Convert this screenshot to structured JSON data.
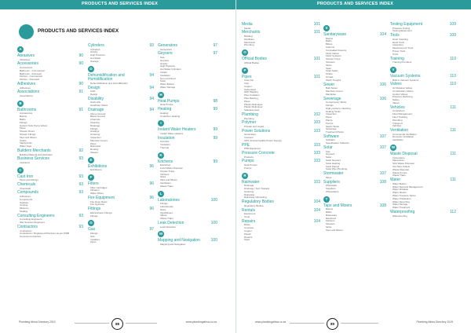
{
  "header": {
    "left_title": "PRODUCTS AND SERVICES INDEX",
    "right_title": "PRODUCTS AND SERVICES INDEX",
    "big_title": "PRODUCTS AND SERVICES INDEX"
  },
  "left_page": {
    "columns": [
      [
        {
          "letter": "A"
        },
        {
          "h": "Abrasives",
          "p": "90",
          "subs": [
            "Abrasives"
          ]
        },
        {
          "h": "Accessories",
          "p": "90",
          "subs": [
            "Accessories",
            "Bathroom - Commercial",
            "Bathroom - Domestic",
            "Kitchen - Commercial",
            "Kitchen - Domestic"
          ]
        },
        {
          "h": "Adhesives",
          "p": "90",
          "subs": [
            "Adhesives"
          ]
        },
        {
          "h": "Associations",
          "p": "91",
          "subs": [
            "Associations"
          ]
        },
        {
          "letter": "B"
        },
        {
          "h": "Bathrooms",
          "p": "91",
          "subs": [
            "Accessories",
            "Basins",
            "Baths",
            "Fittings",
            "Geberit Tank Pump Valves",
            "Pipes",
            "Shower Doors",
            "Shower Fittings",
            "Taps and Mixers",
            "Toilets",
            "Vanity/Units",
            "Water Taps"
          ]
        },
        {
          "h": "Builders Merchants",
          "p": "92",
          "subs": [
            "Building Material and Hardware"
          ]
        },
        {
          "h": "Business Services",
          "p": "93",
          "subs": [
            "Insurance"
          ]
        },
        {
          "letter": "C"
        },
        {
          "h": "Cast Iron",
          "p": "93",
          "subs": [
            "Pipes and Fittings"
          ]
        },
        {
          "h": "Chemicals",
          "p": "93",
          "subs": [
            "Chemicals"
          ]
        },
        {
          "h": "Compounds",
          "p": "93",
          "subs": [
            "Adhesives",
            "Compounds",
            "Gaskets",
            "Jointing",
            "Mixtures",
            "Sealing"
          ]
        },
        {
          "h": "Consulting Engineers",
          "p": "93",
          "subs": [
            "Consulting Engineers",
            "Wet Services Engineers"
          ]
        },
        {
          "h": "Contractors",
          "p": "93",
          "subs": [
            "Contractors",
            "Contractors / Registered Plumbers as per PIRB",
            "General Contractors"
          ]
        }
      ],
      [
        {
          "h": "Cylinders",
          "p": "93",
          "subs": [
            "Cylinders",
            "Gravity",
            "High Pressure",
            "Hot Water",
            "Storage"
          ]
        },
        {
          "letter": "D"
        },
        {
          "h": "Dehumidification and Humidification",
          "p": "94",
          "subs": [
            "Dehumidification and Humidification"
          ]
        },
        {
          "h": "Design",
          "p": "94",
          "subs": [
            "CAD",
            "Design"
          ]
        },
        {
          "h": "Disability",
          "p": "94",
          "subs": [
            "Grab rails",
            "Handicap Toilets"
          ]
        },
        {
          "h": "Drainage",
          "p": "94",
          "subs": [
            "Above Ground",
            "Below Ground",
            "Channels",
            "Cleaning",
            "Drainage",
            "Fittings",
            "Gratings",
            "Guttering",
            "Inspection",
            "Manhole Covers",
            "Pipes",
            "Rainwater",
            "Roofing",
            "Sewers"
          ]
        },
        {
          "letter": "E"
        },
        {
          "h": "Exhibitions",
          "p": "96",
          "subs": [
            "Exhibitions"
          ]
        },
        {
          "letter": "F"
        },
        {
          "h": "Filters",
          "p": "96",
          "subs": [
            "Filter Cartridges",
            "Filtration",
            "Water Filters"
          ]
        },
        {
          "h": "Fire Equipment",
          "p": "96",
          "subs": [
            "Fire Hose Reels",
            "Fire Hydrants"
          ]
        },
        {
          "h": "Fittings",
          "p": "96",
          "subs": [
            "Electrofusion Fittings",
            "Fittings"
          ]
        },
        {
          "letter": "G"
        },
        {
          "h": "Gas",
          "p": "97",
          "subs": [
            "Fittings",
            "Gas",
            "Installers",
            "Pipes"
          ]
        }
      ],
      [
        {
          "h": "Generators",
          "p": "97",
          "subs": [
            "Generators"
          ]
        },
        {
          "h": "Geysers",
          "p": "97",
          "subs": [
            "Gas",
            "Geysers",
            "Gravity",
            "High Pressure",
            "Hot Water Cylinders",
            "Instant",
            "Insulation",
            "Non-combined",
            "Solar",
            "Water Boilers",
            "Water Storage"
          ]
        },
        {
          "letter": "H"
        },
        {
          "h": "Heat Pumps",
          "p": "98",
          "subs": [
            "Heat Pumps"
          ]
        },
        {
          "h": "Heating",
          "p": "99",
          "subs": [
            "Heating",
            "Underfloor Heating"
          ]
        },
        {
          "letter": "I"
        },
        {
          "h": "Instant Water Heaters",
          "p": "99",
          "subs": [
            "Instant Water Heaters"
          ]
        },
        {
          "h": "Insulation",
          "p": "99",
          "subs": [
            "Acoustic",
            "Insulation",
            "Thermal"
          ]
        },
        {
          "letter": "K"
        },
        {
          "h": "Kitchens",
          "p": "99",
          "subs": [
            "Extraction",
            "Food Waste Disposal",
            "Grease Traps",
            "Kitchens",
            "Sinks",
            "Taps and Mixers",
            "Ventilation",
            "Waste Traps"
          ]
        },
        {
          "letter": "L"
        },
        {
          "h": "Laboratories",
          "p": "100",
          "subs": [
            "Fittings",
            "Laboratories",
            "Sinks",
            "Taps/Mixers",
            "Valves",
            "Waste Traps"
          ]
        },
        {
          "h": "Leak Detection",
          "p": "100",
          "subs": [
            "Leak Detection"
          ]
        },
        {
          "letter": "M"
        },
        {
          "h": "Mapping and Navigation",
          "p": "100",
          "subs": [
            "Mapping and Navigation"
          ]
        }
      ]
    ],
    "footer": {
      "left": "Plumbing Africa Directory 2019",
      "pagenum": "88",
      "right": "www.plumbingafrica.co.za"
    }
  },
  "right_page": {
    "columns": [
      [
        {
          "h": "Media",
          "p": "101",
          "subs": [
            "Media"
          ]
        },
        {
          "h": "Merchants",
          "p": "101",
          "subs": [
            "Building",
            "Hardware",
            "Merchants",
            "Plumbing"
          ]
        },
        {
          "letter": "O"
        },
        {
          "h": "Official Bodies",
          "p": "101",
          "subs": [
            "Official Bodies"
          ]
        },
        {
          "letter": "P"
        },
        {
          "h": "Pipes",
          "p": "101",
          "subs": [
            "Cast Iron",
            "Clay",
            "Copper",
            "Galvanised",
            "HDP Welding",
            "Pipe Insulation",
            "Pipe Relining",
            "Pipes",
            "Plastic Multi-layer",
            "Plastic Multi-layer",
            "Stainless steel"
          ]
        },
        {
          "h": "Plumbing",
          "p": "102",
          "subs": [
            "Plumbing"
          ]
        },
        {
          "h": "Polymer",
          "p": "103",
          "subs": [
            "Powder and Liquid"
          ]
        },
        {
          "h": "Power Solutions",
          "p": "103",
          "subs": [
            "Generators",
            "Inverters",
            "UPS (Uninterruptible Power Supply)"
          ]
        },
        {
          "h": "PPE",
          "p": "103",
          "subs": [
            "PPE Equipment"
          ]
        },
        {
          "h": "Pressure Concrete",
          "p": "103",
          "subs": [
            "Products"
          ]
        },
        {
          "h": "Pumps",
          "p": "103",
          "subs": [
            "Heat Pumps",
            "Pumps"
          ]
        },
        {
          "letter": "R"
        },
        {
          "h": "Rainwater",
          "p": "103",
          "subs": [
            "Drainage",
            "Drainage / Soil / Natural",
            "Guttering",
            "Rainwater",
            "Rainwater Harvesting"
          ]
        },
        {
          "h": "Regulatory Bodies",
          "p": "104",
          "subs": [
            "Regulatory Bodies"
          ]
        },
        {
          "h": "Rentals",
          "p": "104",
          "subs": [
            "Equipment",
            "Tools"
          ]
        },
        {
          "h": "Repairs",
          "p": "104",
          "subs": [
            "Brass",
            "Concrete",
            "Copper",
            "Plastic",
            "Repairs",
            "Steel"
          ]
        }
      ],
      [
        {
          "letter": "S"
        },
        {
          "h": "Sanitaryware",
          "p": "104",
          "subs": [
            "Basins",
            "Baths",
            "Bidets",
            "Cisterns",
            "Concealed Cisterns",
            "Flush Valves",
            "Flush Systems",
            "Shower Trays",
            "Showers",
            "Sinks",
            "Spas",
            "Toilet Seats",
            "Toilets",
            "Urinals",
            "Wash Troughs"
          ]
        },
        {
          "h": "Sewer",
          "p": "106",
          "subs": [
            "Bulk Sewer",
            "Manhole Covers",
            "Manholes"
          ]
        },
        {
          "h": "Sewerage",
          "p": "106",
          "subs": [
            "Conservancy Tanks",
            "Fittings",
            "High-pressure Cleaning",
            "Holding Tanks",
            "Inspection",
            "Pipes",
            "Plants",
            "Pumps",
            "Septic Tanks",
            "Sewerage",
            "Treatment Plants"
          ]
        },
        {
          "h": "Software",
          "p": "107",
          "subs": [
            "Software",
            "Specification Software"
          ]
        },
        {
          "h": "Solar",
          "p": "107",
          "subs": [
            "Gas",
            "Geysers",
            "Solar",
            "Solar Geysers",
            "Solar Heating",
            "Solar Panels",
            "Solar Pipe Plumbing"
          ]
        },
        {
          "h": "Stormwater",
          "p": "107",
          "subs": [
            "Pipes"
          ]
        },
        {
          "h": "Suppliers",
          "p": "108",
          "subs": [
            "Wholesale",
            "Suppliers",
            "Wholesalers"
          ]
        },
        {
          "letter": "T"
        },
        {
          "h": "Taps and Mixers",
          "p": "108",
          "subs": [
            "Basins",
            "Baths",
            "Brassware",
            "Electronic",
            "Kitchens",
            "Showers",
            "Sinks",
            "Taps and Mixers"
          ]
        }
      ],
      [
        {
          "h": "Testing Equipment",
          "p": "109",
          "subs": [
            "Pressure Testing",
            "Testing Equipment"
          ]
        },
        {
          "h": "Tools",
          "p": "109",
          "subs": [
            "Drain Cleaning",
            "Hand Tools",
            "Inspection",
            "Measurement Tools",
            "Power Tools",
            "Tools"
          ]
        },
        {
          "h": "Training",
          "p": "110",
          "subs": [
            "Training Providers"
          ]
        },
        {
          "letter": "V"
        },
        {
          "h": "Vacuum Systems",
          "p": "110",
          "subs": [
            "Built-In Vacuum Systems"
          ]
        },
        {
          "h": "Valves",
          "p": "110",
          "subs": [
            "Air Release Valves",
            "Combination Valves",
            "Control Valves",
            "Pressure Reducing",
            "Safety",
            "Valves"
          ]
        },
        {
          "h": "Vehicles",
          "p": "111",
          "subs": [
            "Contractors",
            "Fleet Management",
            "Fleet Tracking",
            "Plumbing",
            "Transport",
            "Vehicles"
          ]
        },
        {
          "h": "Ventilation",
          "p": "111",
          "subs": [
            "Commercial Ventilation",
            "Domestic Ventilation",
            "Ventilation"
          ]
        },
        {
          "letter": "W"
        },
        {
          "h": "Waste Disposal",
          "p": "111",
          "subs": [
            "Incinerators",
            "Macerators",
            "Sink Waste Disposal",
            "Tea Strip Outlets",
            "Waste Disposal",
            "Waste Pumps",
            "Waste Traps"
          ]
        },
        {
          "h": "Water",
          "p": "111",
          "subs": [
            "Water Boilers",
            "Water Demand Management",
            "Water Filtration",
            "Water Meters",
            "Water Pressure Tanks",
            "Water Purification",
            "Water Recycling",
            "Water Storage",
            "Water Treatment"
          ]
        },
        {
          "h": "Waterproofing",
          "p": "112",
          "subs": [
            "Waterproofing"
          ]
        }
      ]
    ],
    "footer": {
      "left": "www.plumbingafrica.co.za",
      "pagenum": "89",
      "right": "Plumbing Africa Directory 2019"
    }
  },
  "colors": {
    "accent": "#2a9a9a",
    "heading_text": "#1e9c9c"
  }
}
